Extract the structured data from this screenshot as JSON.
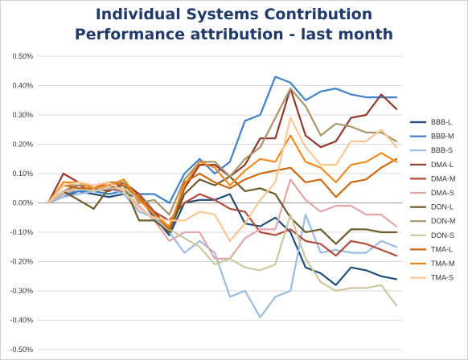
{
  "chart_data": {
    "type": "line",
    "title": "Individual Systems Contribution",
    "subtitle": "Performance attribution - last month",
    "xlabel": "",
    "ylabel": "",
    "ylim": [
      -0.5,
      0.5
    ],
    "yticks": [
      0.5,
      0.4,
      0.3,
      0.2,
      0.1,
      0.0,
      -0.1,
      -0.2,
      -0.3,
      -0.4,
      -0.5
    ],
    "ytick_labels": [
      "0.50%",
      "0.40%",
      "0.30%",
      "0.20%",
      "0.10%",
      "0.00%",
      "-0.10%",
      "-0.20%",
      "-0.30%",
      "-0.40%",
      "-0.50%"
    ],
    "y_unit": "%",
    "grid": true,
    "legend_position": "right",
    "x_points": 24,
    "series": [
      {
        "name": "BBB-L",
        "color": "#1f4e79",
        "values": [
          0.0,
          0.02,
          0.04,
          0.03,
          0.02,
          0.03,
          0.02,
          -0.05,
          -0.11,
          0.0,
          0.01,
          0.01,
          0.03,
          -0.07,
          -0.08,
          -0.05,
          -0.1,
          -0.22,
          -0.24,
          -0.28,
          -0.22,
          -0.23,
          -0.25,
          -0.26
        ]
      },
      {
        "name": "BBB-M",
        "color": "#3e83c8",
        "values": [
          0.0,
          0.03,
          0.04,
          0.04,
          0.03,
          0.04,
          0.03,
          0.03,
          0.0,
          0.1,
          0.15,
          0.1,
          0.14,
          0.28,
          0.3,
          0.43,
          0.41,
          0.35,
          0.38,
          0.39,
          0.37,
          0.36,
          0.36,
          0.36
        ]
      },
      {
        "name": "BBB-S",
        "color": "#9bbde3",
        "values": [
          0.0,
          0.02,
          0.03,
          0.04,
          0.05,
          0.03,
          -0.03,
          -0.05,
          -0.1,
          -0.17,
          -0.13,
          -0.17,
          -0.32,
          -0.3,
          -0.39,
          -0.32,
          -0.3,
          -0.04,
          -0.17,
          -0.16,
          -0.17,
          -0.17,
          -0.13,
          -0.15
        ]
      },
      {
        "name": "DMA-L",
        "color": "#8e3a2e",
        "values": [
          0.0,
          0.1,
          0.07,
          0.05,
          0.04,
          0.07,
          0.03,
          -0.03,
          -0.09,
          0.05,
          0.13,
          0.13,
          0.09,
          0.13,
          0.22,
          0.22,
          0.39,
          0.23,
          0.19,
          0.21,
          0.29,
          0.3,
          0.37,
          0.32
        ]
      },
      {
        "name": "DMA-M",
        "color": "#b24d3e",
        "values": [
          0.0,
          0.04,
          0.06,
          0.04,
          0.05,
          0.04,
          0.03,
          -0.03,
          -0.06,
          0.0,
          0.03,
          0.01,
          -0.02,
          -0.03,
          -0.1,
          -0.11,
          -0.09,
          -0.13,
          -0.14,
          -0.18,
          -0.13,
          -0.14,
          -0.16,
          -0.18
        ]
      },
      {
        "name": "DMA-S",
        "color": "#e2a7a7",
        "values": [
          0.0,
          0.03,
          0.05,
          0.04,
          0.06,
          0.04,
          -0.01,
          -0.06,
          -0.13,
          -0.1,
          -0.1,
          -0.19,
          -0.19,
          -0.12,
          -0.09,
          -0.09,
          0.08,
          0.01,
          -0.03,
          -0.01,
          -0.01,
          -0.04,
          -0.04,
          -0.08
        ]
      },
      {
        "name": "DON-L",
        "color": "#6d5d2c",
        "values": [
          0.0,
          0.04,
          0.01,
          -0.02,
          0.05,
          0.06,
          -0.06,
          -0.06,
          -0.1,
          0.03,
          0.08,
          0.06,
          0.09,
          0.04,
          0.05,
          0.03,
          -0.05,
          -0.1,
          -0.09,
          -0.14,
          -0.09,
          -0.09,
          -0.1,
          -0.1
        ]
      },
      {
        "name": "DON-M",
        "color": "#a89569",
        "values": [
          0.0,
          0.06,
          0.06,
          0.06,
          0.07,
          0.07,
          0.0,
          0.01,
          -0.04,
          0.08,
          0.14,
          0.14,
          0.09,
          0.15,
          0.19,
          0.29,
          0.39,
          0.33,
          0.23,
          0.27,
          0.26,
          0.24,
          0.24,
          0.21
        ]
      },
      {
        "name": "DON-S",
        "color": "#ccc9a1",
        "values": [
          0.0,
          0.04,
          0.05,
          0.04,
          0.05,
          0.05,
          0.01,
          -0.04,
          -0.09,
          -0.12,
          -0.15,
          -0.21,
          -0.19,
          -0.22,
          -0.23,
          -0.21,
          -0.04,
          -0.19,
          -0.27,
          -0.3,
          -0.29,
          -0.29,
          -0.28,
          -0.35
        ]
      },
      {
        "name": "TMA-L",
        "color": "#cc6a14",
        "values": [
          0.0,
          0.06,
          0.05,
          0.05,
          0.07,
          0.06,
          0.02,
          -0.04,
          -0.09,
          0.07,
          0.1,
          0.07,
          0.05,
          0.08,
          0.1,
          0.11,
          0.12,
          0.07,
          0.08,
          0.02,
          0.07,
          0.08,
          0.12,
          0.15
        ]
      },
      {
        "name": "TMA-M",
        "color": "#f08c1e",
        "values": [
          0.0,
          0.07,
          0.07,
          0.05,
          0.06,
          0.08,
          0.01,
          -0.04,
          -0.08,
          0.06,
          0.14,
          0.12,
          0.06,
          0.11,
          0.15,
          0.14,
          0.23,
          0.14,
          0.12,
          0.07,
          0.13,
          0.14,
          0.17,
          0.14
        ]
      },
      {
        "name": "TMA-S",
        "color": "#f9c794",
        "values": [
          0.0,
          0.06,
          0.07,
          0.06,
          0.07,
          0.04,
          -0.02,
          -0.05,
          -0.06,
          -0.06,
          -0.03,
          -0.04,
          -0.13,
          -0.07,
          0.01,
          0.07,
          0.29,
          0.19,
          0.13,
          0.13,
          0.21,
          0.21,
          0.25,
          0.19
        ]
      }
    ]
  }
}
